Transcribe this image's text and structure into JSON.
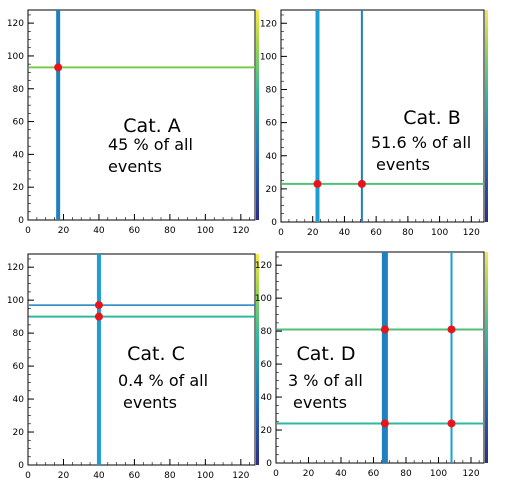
{
  "chart_data": [
    {
      "type": "scatter",
      "label": "Cat. A",
      "caption_line1": "45 % of all",
      "caption_line2": "events",
      "xlim": [
        0,
        128
      ],
      "ylim": [
        0,
        128
      ],
      "x_ticks": [
        "0",
        "20",
        "40",
        "60",
        "80",
        "100",
        "120"
      ],
      "y_ticks": [
        "0",
        "20",
        "40",
        "60",
        "80",
        "100",
        "120"
      ],
      "vertical_lines": [
        {
          "x": 17,
          "color": "#1f7fbf",
          "width": 4
        }
      ],
      "horizontal_lines": [
        {
          "y": 93,
          "color": "#7fc94a",
          "width": 2
        }
      ],
      "points": [
        {
          "x": 17,
          "y": 93
        }
      ]
    },
    {
      "type": "scatter",
      "label": "Cat. B",
      "caption_line1": "51.6 % of all",
      "caption_line2": "events",
      "xlim": [
        0,
        128
      ],
      "ylim": [
        0,
        128
      ],
      "x_ticks": [
        "0",
        "20",
        "40",
        "60",
        "80",
        "100",
        "120"
      ],
      "y_ticks": [
        "0",
        "20",
        "40",
        "60",
        "80",
        "100",
        "120"
      ],
      "vertical_lines": [
        {
          "x": 23,
          "color": "#1a9fd0",
          "width": 4
        },
        {
          "x": 51,
          "color": "#1f7fbf",
          "width": 2
        }
      ],
      "horizontal_lines": [
        {
          "y": 23,
          "color": "#4fbf7a",
          "width": 2
        }
      ],
      "points": [
        {
          "x": 23,
          "y": 23
        },
        {
          "x": 51,
          "y": 23
        }
      ]
    },
    {
      "type": "scatter",
      "label": "Cat. C",
      "caption_line1": "0.4 % of all",
      "caption_line2": "events",
      "xlim": [
        0,
        128
      ],
      "ylim": [
        0,
        128
      ],
      "x_ticks": [
        "0",
        "20",
        "40",
        "60",
        "80",
        "100",
        "120"
      ],
      "y_ticks": [
        "0",
        "20",
        "40",
        "60",
        "80",
        "100",
        "120"
      ],
      "vertical_lines": [
        {
          "x": 40,
          "color": "#1a9fd0",
          "width": 4
        }
      ],
      "horizontal_lines": [
        {
          "y": 97,
          "color": "#1f7fbf",
          "width": 1.5
        },
        {
          "y": 90,
          "color": "#2fb8a0",
          "width": 2
        }
      ],
      "points": [
        {
          "x": 40,
          "y": 97
        },
        {
          "x": 40,
          "y": 90
        }
      ]
    },
    {
      "type": "scatter",
      "label": "Cat. D",
      "caption_line1": "3 % of all",
      "caption_line2": "events",
      "xlim": [
        0,
        128
      ],
      "ylim": [
        0,
        128
      ],
      "x_ticks": [
        "0",
        "20",
        "40",
        "60",
        "80",
        "100",
        "120"
      ],
      "y_ticks": [
        "0",
        "20",
        "40",
        "60",
        "80",
        "100",
        "120"
      ],
      "vertical_lines": [
        {
          "x": 67,
          "color": "#1f7fbf",
          "width": 6
        },
        {
          "x": 108,
          "color": "#1a9fd0",
          "width": 2
        }
      ],
      "horizontal_lines": [
        {
          "y": 81,
          "color": "#4fbf7a",
          "width": 2
        },
        {
          "y": 24,
          "color": "#2fb8a0",
          "width": 2
        }
      ],
      "points": [
        {
          "x": 67,
          "y": 81
        },
        {
          "x": 108,
          "y": 81
        },
        {
          "x": 67,
          "y": 24
        },
        {
          "x": 108,
          "y": 24
        }
      ]
    }
  ]
}
